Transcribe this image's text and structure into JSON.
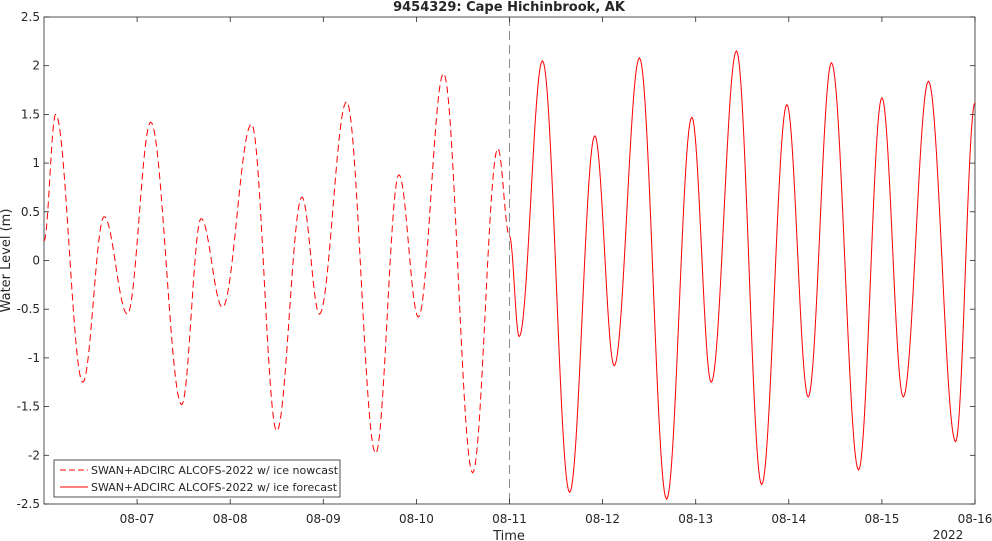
{
  "chart_data": {
    "type": "line",
    "title": "9454329: Cape Hichinbrook, AK",
    "xlabel": "Time",
    "ylabel": "Water Level (m)",
    "year_label": "2022",
    "xlim": [
      "08-06 00:00",
      "08-16 00:00"
    ],
    "ylim": [
      -2.5,
      2.5
    ],
    "yticks": [
      "-2.5",
      "-2",
      "-1.5",
      "-1",
      "-0.5",
      "0",
      "0.5",
      "1",
      "1.5",
      "2",
      "2.5"
    ],
    "ytick_values": [
      -2.5,
      -2,
      -1.5,
      -1,
      -0.5,
      0,
      0.5,
      1,
      1.5,
      2,
      2.5
    ],
    "xticks": [
      "08-07",
      "08-08",
      "08-09",
      "08-10",
      "08-11",
      "08-12",
      "08-13",
      "08-14",
      "08-15",
      "08-16"
    ],
    "nowcast_end": "08-11 00:00",
    "grid": false,
    "legend_position": "bottom-left",
    "series": [
      {
        "name": "SWAN+ADCIRC ALCOFS-2022 w/ ice nowcast",
        "color": "#ff0000",
        "style": "dashed",
        "extrema": [
          [
            "08-06 00:00",
            0.2
          ],
          [
            "08-06 03:00",
            1.5
          ],
          [
            "08-06 10:00",
            -1.25
          ],
          [
            "08-06 15:30",
            0.45
          ],
          [
            "08-06 21:30",
            -0.55
          ],
          [
            "08-07 03:30",
            1.42
          ],
          [
            "08-07 11:30",
            -1.48
          ],
          [
            "08-07 16:30",
            0.43
          ],
          [
            "08-07 22:00",
            -0.48
          ],
          [
            "08-08 05:30",
            1.4
          ],
          [
            "08-08 12:00",
            -1.75
          ],
          [
            "08-08 18:30",
            0.65
          ],
          [
            "08-08 23:00",
            -0.55
          ],
          [
            "08-09 06:00",
            1.63
          ],
          [
            "08-09 13:30",
            -1.98
          ],
          [
            "08-09 19:30",
            0.88
          ],
          [
            "08-10 00:30",
            -0.58
          ],
          [
            "08-10 07:00",
            1.92
          ],
          [
            "08-10 14:30",
            -2.18
          ],
          [
            "08-10 21:00",
            1.15
          ],
          [
            "08-11 00:00",
            0.25
          ]
        ]
      },
      {
        "name": "SWAN+ADCIRC ALCOFS-2022 w/ ice forecast",
        "color": "#ff0000",
        "style": "solid",
        "extrema": [
          [
            "08-11 00:00",
            0.25
          ],
          [
            "08-11 02:30",
            -0.78
          ],
          [
            "08-11 08:30",
            2.05
          ],
          [
            "08-11 15:30",
            -2.38
          ],
          [
            "08-11 22:00",
            1.28
          ],
          [
            "08-12 03:00",
            -1.08
          ],
          [
            "08-12 09:30",
            2.08
          ],
          [
            "08-12 16:30",
            -2.45
          ],
          [
            "08-12 23:00",
            1.47
          ],
          [
            "08-13 04:00",
            -1.25
          ],
          [
            "08-13 10:30",
            2.15
          ],
          [
            "08-13 17:00",
            -2.3
          ],
          [
            "08-13 23:30",
            1.6
          ],
          [
            "08-14 05:00",
            -1.4
          ],
          [
            "08-14 11:00",
            2.03
          ],
          [
            "08-14 18:00",
            -2.15
          ],
          [
            "08-15 00:00",
            1.67
          ],
          [
            "08-15 05:30",
            -1.4
          ],
          [
            "08-15 12:00",
            1.84
          ],
          [
            "08-15 19:00",
            -1.86
          ],
          [
            "08-16 00:00",
            1.62
          ]
        ]
      }
    ]
  }
}
